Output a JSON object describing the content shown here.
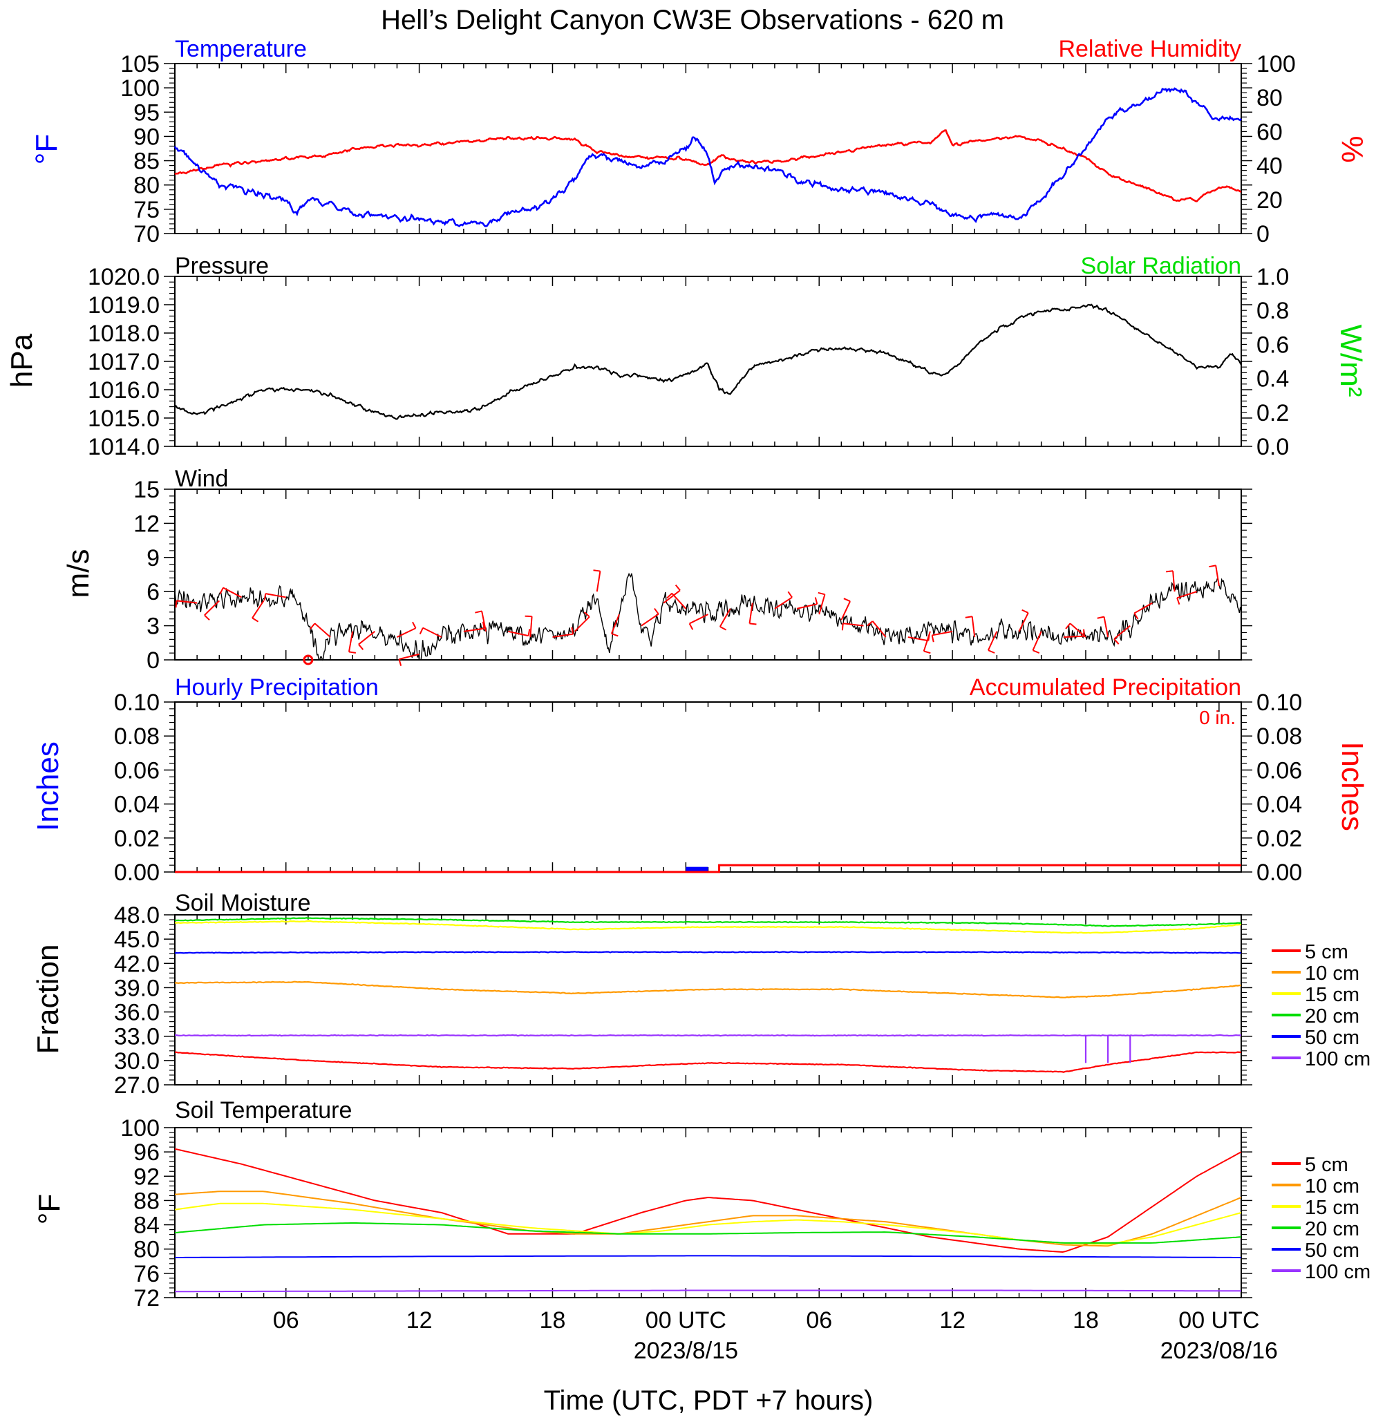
{
  "title": "Hell’s Delight Canyon CW3E Observations - 620 m",
  "colors": {
    "blue": "#0000ff",
    "red": "#ff0000",
    "green": "#00dd00",
    "orange": "#ff9900",
    "yellow": "#ffff00",
    "purple": "#9933ff",
    "black": "#000000"
  },
  "x_axis": {
    "label": "Time (UTC, PDT +7 hours)",
    "range_hours_from_start": [
      0,
      48
    ],
    "start": "2023-08-14 01:00 UTC",
    "ticks": [
      "06",
      "12",
      "18",
      "00 UTC",
      "06",
      "12",
      "18",
      "00 UTC"
    ],
    "dates": [
      "2023/8/15",
      "2023/08/16"
    ]
  },
  "panels": {
    "temp_rh": {
      "title_left": "Temperature",
      "title_right": "Relative Humidity",
      "ylabel_left": "°F",
      "ylabel_right": "%",
      "yticks_left": [
        "105",
        "100",
        "95",
        "90",
        "85",
        "80",
        "75",
        "70"
      ],
      "yticks_right": [
        "100",
        "80",
        "60",
        "40",
        "20",
        "0"
      ]
    },
    "pressure": {
      "title_left": "Pressure",
      "title_right": "Solar Radiation",
      "ylabel_left": "hPa",
      "ylabel_right": "W/m²",
      "yticks_left": [
        "1020.0",
        "1019.0",
        "1018.0",
        "1017.0",
        "1016.0",
        "1015.0",
        "1014.0"
      ],
      "yticks_right": [
        "1.0",
        "0.8",
        "0.6",
        "0.4",
        "0.2",
        "0.0"
      ]
    },
    "wind": {
      "title_left": "Wind",
      "ylabel_left": "m/s",
      "yticks_left": [
        "15",
        "12",
        "9",
        "6",
        "3",
        "0"
      ]
    },
    "precip": {
      "title_left": "Hourly Precipitation",
      "title_right": "Accumulated Precipitation",
      "accum_text": "0 in.",
      "ylabel_left": "Inches",
      "ylabel_right": "Inches",
      "yticks_left": [
        "0.10",
        "0.08",
        "0.06",
        "0.04",
        "0.02",
        "0.00"
      ],
      "yticks_right": [
        "0.10",
        "0.08",
        "0.06",
        "0.04",
        "0.02",
        "0.00"
      ]
    },
    "soil_moisture": {
      "title_left": "Soil Moisture",
      "ylabel_left": "Fraction",
      "yticks_left": [
        "48.0",
        "45.0",
        "42.0",
        "39.0",
        "36.0",
        "33.0",
        "30.0",
        "27.0"
      ],
      "legend": [
        "5 cm",
        "10 cm",
        "15 cm",
        "20 cm",
        "50 cm",
        "100 cm"
      ]
    },
    "soil_temp": {
      "title_left": "Soil Temperature",
      "ylabel_left": "°F",
      "yticks_left": [
        "100",
        "96",
        "92",
        "88",
        "84",
        "80",
        "76",
        "72"
      ],
      "legend": [
        "5 cm",
        "10 cm",
        "15 cm",
        "20 cm",
        "50 cm",
        "100 cm"
      ]
    }
  },
  "chart_data": [
    {
      "type": "line",
      "title": "Temperature",
      "ylabel": "°F",
      "ylim": [
        70,
        105
      ],
      "x_unit": "hours since 2023-08-14 01 UTC",
      "series": [
        {
          "name": "Temperature",
          "color": "#0000ff",
          "x": [
            0,
            1,
            2,
            3,
            4,
            5,
            5.5,
            6,
            7,
            8,
            9,
            10,
            11,
            12,
            13,
            14,
            15,
            16,
            17,
            18,
            18.5,
            19,
            20,
            20.5,
            21,
            22,
            23,
            23.5,
            24,
            24.3,
            25,
            26,
            27,
            28,
            29,
            30,
            31,
            32,
            33,
            34,
            34.7,
            35,
            36,
            37,
            38,
            39,
            40,
            41,
            42,
            43,
            44,
            44.5,
            45,
            45.5,
            46,
            47,
            47.5,
            48
          ],
          "y": [
            88,
            84,
            80,
            79,
            78,
            77,
            74,
            77,
            76,
            74,
            74,
            73,
            73,
            72.5,
            72,
            72,
            74,
            75,
            77,
            81,
            85,
            86,
            85,
            84,
            84,
            85,
            88,
            90,
            86,
            81,
            84,
            84,
            83,
            81,
            80,
            79,
            79,
            78,
            77,
            76,
            75,
            74,
            73,
            74,
            73,
            77,
            82,
            88,
            94,
            96,
            98,
            100,
            100,
            99,
            97,
            93,
            94,
            93
          ]
        }
      ]
    },
    {
      "type": "line",
      "title": "Relative Humidity",
      "ylabel": "%",
      "ylim": [
        0,
        100
      ],
      "x_unit": "hours since 2023-08-14 01 UTC",
      "series": [
        {
          "name": "Relative Humidity",
          "color": "#ff0000",
          "x": [
            0,
            2,
            4,
            6,
            7,
            8,
            9,
            10,
            11,
            12,
            13,
            14,
            15,
            16,
            17,
            18,
            19,
            20,
            21,
            22,
            23,
            24,
            24.5,
            25,
            26,
            27,
            28,
            29,
            30,
            31,
            32,
            33,
            34,
            34.7,
            35,
            36,
            37,
            38,
            39,
            40,
            41,
            42,
            43,
            44,
            45,
            46,
            47,
            47.5,
            48
          ],
          "y": [
            35,
            40,
            43,
            45,
            46,
            50,
            51,
            52,
            52,
            53,
            54,
            55,
            56,
            56,
            56,
            55,
            48,
            46,
            45,
            45,
            44,
            40,
            46,
            44,
            42,
            42,
            44,
            46,
            48,
            50,
            52,
            53,
            54,
            61,
            52,
            54,
            56,
            57,
            54,
            50,
            45,
            35,
            30,
            26,
            20,
            20,
            27,
            27,
            25
          ]
        }
      ]
    },
    {
      "type": "line",
      "title": "Pressure",
      "ylabel": "hPa",
      "ylim": [
        1014,
        1020
      ],
      "x_unit": "hours since 2023-08-14 01 UTC",
      "series": [
        {
          "name": "Pressure",
          "color": "#000000",
          "x": [
            0,
            1,
            2,
            3,
            4,
            5,
            6,
            7,
            8,
            9,
            10,
            11,
            12,
            13,
            14,
            15,
            16,
            17,
            18,
            19,
            20,
            21,
            22,
            23,
            24,
            24.5,
            25,
            26,
            27,
            28,
            29,
            30,
            31,
            32,
            33,
            34,
            34.5,
            35,
            36,
            37,
            38,
            39,
            40,
            41,
            42,
            43,
            44,
            45,
            46,
            47,
            47.5,
            48
          ],
          "y": [
            1015.4,
            1015.1,
            1015.4,
            1015.7,
            1016.0,
            1016.0,
            1016.0,
            1015.8,
            1015.5,
            1015.2,
            1015.0,
            1015.1,
            1015.2,
            1015.2,
            1015.4,
            1015.9,
            1016.2,
            1016.5,
            1016.8,
            1016.8,
            1016.5,
            1016.5,
            1016.3,
            1016.5,
            1016.9,
            1016.0,
            1015.9,
            1016.8,
            1017.0,
            1017.2,
            1017.4,
            1017.5,
            1017.4,
            1017.3,
            1017.0,
            1016.6,
            1016.5,
            1016.7,
            1017.5,
            1018.1,
            1018.5,
            1018.8,
            1018.8,
            1019.0,
            1018.8,
            1018.3,
            1017.8,
            1017.3,
            1016.8,
            1016.8,
            1017.3,
            1016.9
          ]
        }
      ]
    },
    {
      "type": "line",
      "title": "Wind",
      "ylabel": "m/s",
      "ylim": [
        0,
        15
      ],
      "x_unit": "hours since 2023-08-14 01 UTC",
      "series": [
        {
          "name": "Wind speed",
          "color": "#000000",
          "x": [
            0,
            1,
            2,
            3,
            4,
            5,
            5.5,
            6,
            6.5,
            7,
            8,
            9,
            10,
            11,
            12,
            13,
            14,
            15,
            16,
            17,
            18,
            19,
            19.5,
            20,
            20.5,
            21,
            21.5,
            22,
            23,
            24,
            25,
            26,
            27,
            28,
            29,
            30,
            31,
            32,
            33,
            34,
            35,
            36,
            37,
            38,
            39,
            40,
            41,
            42,
            43,
            44,
            45,
            46,
            47,
            48
          ],
          "y": [
            5.5,
            5,
            5.2,
            5.5,
            5.2,
            5.5,
            5.5,
            3,
            0,
            2,
            2.5,
            2.5,
            2,
            0.5,
            2,
            2.5,
            2.5,
            2.5,
            2,
            2,
            2.5,
            6,
            1,
            4,
            8,
            3,
            2,
            5,
            4.5,
            4,
            4.5,
            5,
            4.5,
            4.5,
            4,
            3.5,
            3,
            2,
            2,
            2.5,
            2.5,
            2,
            2.5,
            2.5,
            2.5,
            2,
            2,
            2,
            3,
            5,
            6,
            6,
            6.5,
            5
          ]
        }
      ],
      "barb_color": "#ff0000"
    },
    {
      "type": "bar",
      "title": "Hourly Precipitation",
      "ylabel": "Inches",
      "ylim": [
        0,
        0.1
      ],
      "x_unit": "hours since 2023-08-14 01 UTC",
      "series": [
        {
          "name": "Hourly Precipitation",
          "color": "#0000ff",
          "x": [
            23.5
          ],
          "values": [
            0.003
          ]
        },
        {
          "name": "Accumulated Precipitation",
          "color": "#ff0000",
          "type": "step",
          "x": [
            0,
            24.5,
            48
          ],
          "values": [
            0,
            0.004,
            0.004
          ]
        }
      ]
    },
    {
      "type": "line",
      "title": "Soil Moisture",
      "ylabel": "Fraction",
      "ylim": [
        27,
        48
      ],
      "x_unit": "hours since 2023-08-14 01 UTC",
      "series": [
        {
          "name": "5 cm",
          "color": "#ff0000",
          "x": [
            0,
            6,
            12,
            18,
            24,
            30,
            36,
            40,
            42,
            46,
            48
          ],
          "y": [
            31,
            30,
            29.2,
            29,
            29.7,
            29.5,
            28.8,
            28.6,
            29.5,
            31,
            31
          ]
        },
        {
          "name": "10 cm",
          "color": "#ff9900",
          "x": [
            0,
            6,
            12,
            18,
            24,
            30,
            36,
            40,
            42,
            46,
            48
          ],
          "y": [
            39.6,
            39.7,
            38.8,
            38.3,
            38.8,
            38.8,
            38.2,
            37.8,
            38,
            38.8,
            39.3
          ]
        },
        {
          "name": "15 cm",
          "color": "#ffff00",
          "x": [
            0,
            6,
            12,
            18,
            24,
            30,
            36,
            40,
            42,
            46,
            48
          ],
          "y": [
            47,
            47.2,
            46.8,
            46.2,
            46.5,
            46.5,
            46.1,
            45.8,
            45.8,
            46.3,
            46.8
          ]
        },
        {
          "name": "20 cm",
          "color": "#00dd00",
          "x": [
            0,
            6,
            12,
            18,
            24,
            30,
            36,
            40,
            42,
            46,
            48
          ],
          "y": [
            47.3,
            47.6,
            47.4,
            47.1,
            47.1,
            47.1,
            47,
            46.8,
            46.6,
            46.8,
            47
          ]
        },
        {
          "name": "50 cm",
          "color": "#0000ff",
          "x": [
            0,
            12,
            24,
            36,
            48
          ],
          "y": [
            43.3,
            43.4,
            43.4,
            43.4,
            43.3
          ]
        },
        {
          "name": "100 cm",
          "color": "#9933ff",
          "x": [
            0,
            12,
            24,
            36,
            48
          ],
          "y": [
            33.1,
            33.1,
            33.1,
            33.1,
            33.1
          ],
          "dips_x": [
            41,
            42,
            43
          ],
          "dips_to": 29.7
        }
      ]
    },
    {
      "type": "line",
      "title": "Soil Temperature",
      "ylabel": "°F",
      "ylim": [
        72,
        100
      ],
      "x_unit": "hours since 2023-08-14 01 UTC",
      "series": [
        {
          "name": "5 cm",
          "color": "#ff0000",
          "x": [
            0,
            3,
            6,
            9,
            12,
            15,
            18,
            21,
            23,
            24,
            26,
            28,
            30,
            32,
            34,
            36,
            38,
            40,
            42,
            44,
            46,
            48
          ],
          "y": [
            96.5,
            94,
            91,
            88,
            86,
            82.5,
            82.5,
            86,
            88,
            88.5,
            88,
            86.5,
            85,
            83.5,
            82,
            81,
            80,
            79.5,
            82,
            87,
            92,
            96
          ]
        },
        {
          "name": "10 cm",
          "color": "#ff9900",
          "x": [
            0,
            2,
            4,
            6,
            8,
            12,
            16,
            18,
            20,
            22,
            24,
            26,
            28,
            30,
            32,
            34,
            36,
            38,
            40,
            42,
            44,
            46,
            48
          ],
          "y": [
            89,
            89.5,
            89.5,
            88.5,
            87.5,
            85,
            83,
            82.5,
            82.5,
            83.5,
            84.5,
            85.5,
            85.5,
            85,
            84.5,
            83.5,
            82.5,
            81.5,
            80.7,
            80.5,
            82.5,
            85.5,
            88.5
          ]
        },
        {
          "name": "15 cm",
          "color": "#ffff00",
          "x": [
            0,
            2,
            4,
            6,
            8,
            12,
            16,
            18,
            20,
            22,
            24,
            26,
            28,
            30,
            32,
            34,
            36,
            38,
            40,
            42,
            44,
            46,
            48
          ],
          "y": [
            86.5,
            87.5,
            87.5,
            87,
            86.5,
            85,
            83.5,
            83,
            82.5,
            83,
            84,
            84.5,
            84.8,
            84.5,
            84,
            83.3,
            82.5,
            81.5,
            81,
            80.8,
            82,
            84,
            86
          ]
        },
        {
          "name": "20 cm",
          "color": "#00dd00",
          "x": [
            0,
            4,
            8,
            12,
            16,
            20,
            24,
            28,
            32,
            36,
            40,
            44,
            48
          ],
          "y": [
            82.7,
            84,
            84.3,
            84,
            83,
            82.5,
            82.5,
            82.7,
            82.8,
            82,
            81,
            81,
            82
          ]
        },
        {
          "name": "50 cm",
          "color": "#0000ff",
          "x": [
            0,
            12,
            24,
            36,
            48
          ],
          "y": [
            78.6,
            78.8,
            78.9,
            78.8,
            78.6
          ]
        },
        {
          "name": "100 cm",
          "color": "#9933ff",
          "x": [
            0,
            12,
            24,
            36,
            48
          ],
          "y": [
            73,
            73.1,
            73.2,
            73.2,
            73.1
          ]
        }
      ]
    }
  ]
}
